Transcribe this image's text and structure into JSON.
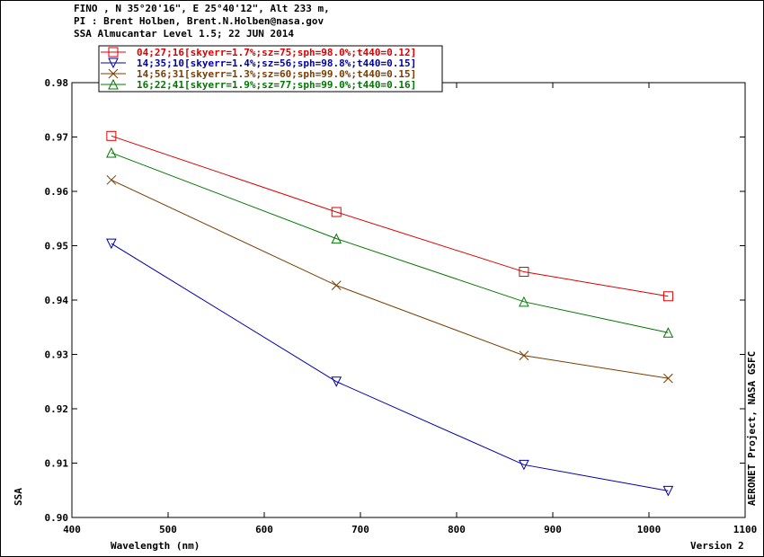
{
  "header": {
    "line1": "FINO , N 35°20'16\", E 25°40'12\", Alt 233 m,",
    "line2": "PI : Brent Holben, Brent.N.Holben@nasa.gov",
    "line3": "SSA Almucantar Level 1.5; 22 JUN 2014"
  },
  "side_label": "AERONET Project, NASA GSFC",
  "version": "Version 2",
  "chart_data": {
    "type": "line",
    "xlabel": "Wavelength (nm)",
    "ylabel": "SSA",
    "xlim": [
      400,
      1100
    ],
    "ylim": [
      0.9,
      0.98
    ],
    "xticks": [
      400,
      500,
      600,
      700,
      800,
      900,
      1000,
      1100
    ],
    "yticks": [
      0.9,
      0.91,
      0.92,
      0.93,
      0.94,
      0.95,
      0.96,
      0.97,
      0.98
    ],
    "grid": false,
    "legend": "top-left",
    "x": [
      441,
      675,
      870,
      1020
    ],
    "series": [
      {
        "name": "04;27;16[skyerr=1.7%;sz=75;sph=98.0%;t440=0.12]",
        "marker": "square",
        "color": "#dd0000",
        "values": [
          0.9702,
          0.9562,
          0.9452,
          0.9407
        ]
      },
      {
        "name": "14;35;10[skyerr=1.4%;sz=56;sph=98.8%;t440=0.15]",
        "marker": "triangle-down",
        "color": "#0000aa",
        "values": [
          0.9504,
          0.925,
          0.9097,
          0.9049
        ]
      },
      {
        "name": "14;56;31[skyerr=1.3%;sz=60;sph=99.0%;t440=0.15]",
        "marker": "x",
        "color": "#7a3d00",
        "values": [
          0.9621,
          0.9427,
          0.9298,
          0.9256
        ]
      },
      {
        "name": "16;22;41[skyerr=1.9%;sz=77;sph=99.0%;t440=0.16]",
        "marker": "triangle-up",
        "color": "#007700",
        "values": [
          0.9671,
          0.9513,
          0.9397,
          0.934
        ]
      }
    ]
  }
}
